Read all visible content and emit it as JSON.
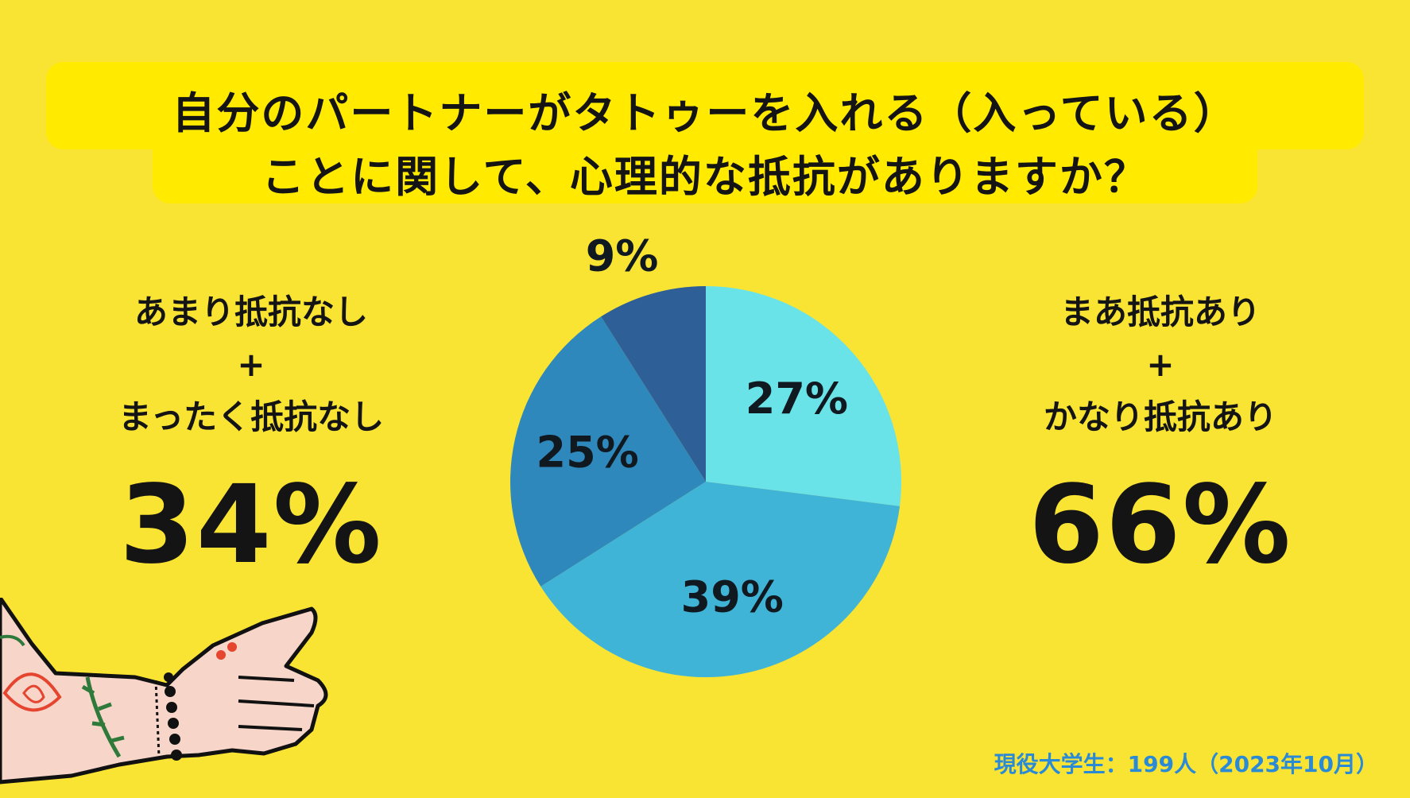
{
  "title": {
    "line1": "自分のパートナーがタトゥーを入れる（入っている）",
    "line2": "ことに関して、心理的な抵抗がありますか？"
  },
  "left_summary": {
    "line1": "あまり抵抗なし",
    "plus": "+",
    "line2": "まったく抵抗なし",
    "value": "34%"
  },
  "right_summary": {
    "line1": "まあ抵抗あり",
    "plus": "+",
    "line2": "かなり抵抗あり",
    "value": "66%"
  },
  "footer": "現役大学生：199人（2023年10月）",
  "chart_data": {
    "type": "pie",
    "slices": [
      {
        "value": 27,
        "label": "27%",
        "color": "#6ae3e8"
      },
      {
        "value": 39,
        "label": "39%",
        "color": "#40b4d6"
      },
      {
        "value": 25,
        "label": "25%",
        "color": "#2f88bb"
      },
      {
        "value": 9,
        "label": "9%",
        "color": "#2e5f96"
      }
    ],
    "start": "12 o'clock",
    "direction": "clockwise"
  },
  "colors": {
    "background": "#f9e433",
    "title_highlight": "#ffea00",
    "footer_text": "#2a8ad6"
  }
}
